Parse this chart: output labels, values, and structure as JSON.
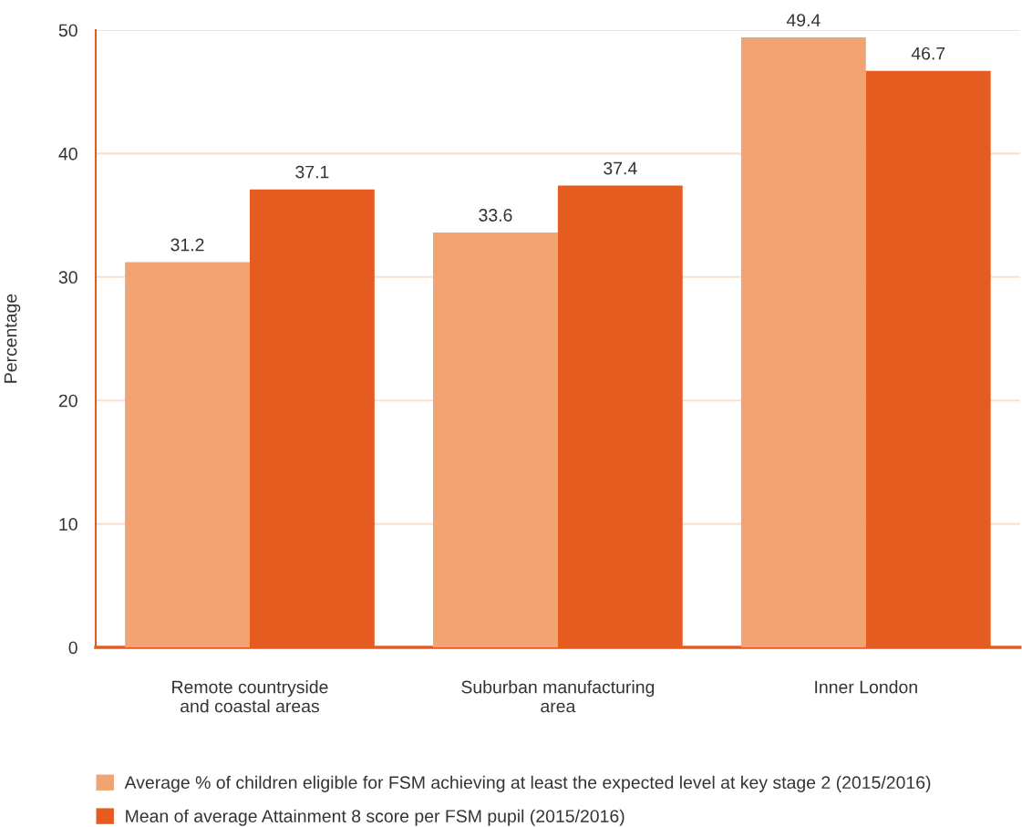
{
  "chart_data": {
    "type": "bar",
    "ylabel": "Percentage",
    "categories": [
      "Remote countryside\nand coastal areas",
      "Suburban manufacturing\narea",
      "Inner London"
    ],
    "series": [
      {
        "name": "Average % of children eligible for FSM achieving at least the expected level at key stage 2 (2015/2016)",
        "color": "#f2a374",
        "values": [
          31.2,
          33.6,
          49.4
        ]
      },
      {
        "name": "Mean of average Attainment 8 score per FSM pupil (2015/2016)",
        "color": "#e55c20",
        "values": [
          37.1,
          37.4,
          46.7
        ]
      }
    ],
    "ylim": [
      0,
      50
    ],
    "yticks": [
      0,
      10,
      20,
      30,
      40,
      50
    ],
    "grid": "y",
    "data_labels": true,
    "legend": "bottom"
  }
}
